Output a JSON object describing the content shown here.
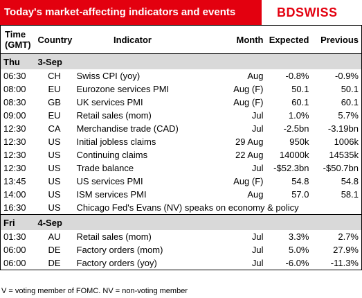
{
  "header": {
    "title": "Today's market-affecting indicators and events",
    "logo": "BDSWISS"
  },
  "columns": [
    "Time (GMT)",
    "Country",
    "Indicator",
    "Month",
    "Expected",
    "Previous"
  ],
  "days": [
    {
      "day": "Thu",
      "date": "3-Sep",
      "rows": [
        [
          "06:30",
          "CH",
          "Swiss CPI (yoy)",
          "Aug",
          "-0.8%",
          "-0.9%"
        ],
        [
          "08:00",
          "EU",
          "Eurozone services PMI",
          "Aug (F)",
          "50.1",
          "50.1"
        ],
        [
          "08:30",
          "GB",
          "UK services PMI",
          "Aug (F)",
          "60.1",
          "60.1"
        ],
        [
          "09:00",
          "EU",
          "Retail sales (mom)",
          "Jul",
          "1.0%",
          "5.7%"
        ],
        [
          "12:30",
          "CA",
          "Merchandise trade (CAD)",
          "Jul",
          "-2.5bn",
          "-3.19bn"
        ],
        [
          "12:30",
          "US",
          "Initial jobless claims",
          "29 Aug",
          "950k",
          "1006k"
        ],
        [
          "12:30",
          "US",
          "Continuing claims",
          "22 Aug",
          "14000k",
          "14535k"
        ],
        [
          "12:30",
          "US",
          "Trade balance",
          "Jul",
          "-$52.3bn",
          "-$50.7bn"
        ],
        [
          "13:45",
          "US",
          "US services PMI",
          "Aug (F)",
          "54.8",
          "54.8"
        ],
        [
          "14:00",
          "US",
          "ISM services PMI",
          "Aug",
          "57.0",
          "58.1"
        ],
        [
          "16:30",
          "US",
          "Chicago Fed's Evans (NV) speaks on economy & policy"
        ]
      ]
    },
    {
      "day": "Fri",
      "date": "4-Sep",
      "rows": [
        [
          "01:30",
          "AU",
          "Retail sales (mom)",
          "Jul",
          "3.3%",
          "2.7%"
        ],
        [
          "06:00",
          "DE",
          "Factory orders (mom)",
          "Jul",
          "5.0%",
          "27.9%"
        ],
        [
          "06:00",
          "DE",
          "Factory orders (yoy)",
          "Jul",
          "-6.0%",
          "-11.3%"
        ]
      ]
    }
  ],
  "footnote": "V = voting member of FOMC. NV = non-voting member"
}
